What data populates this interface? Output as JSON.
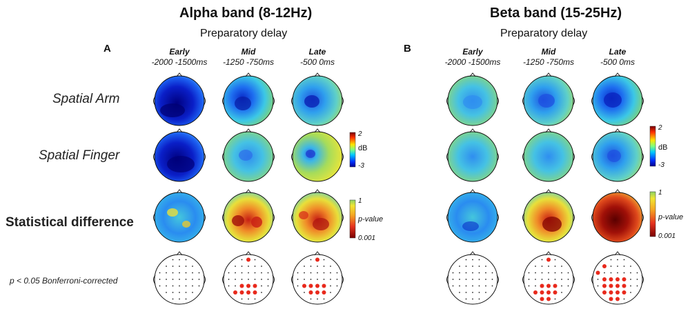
{
  "panels": [
    {
      "letter": "A",
      "band_title": "Alpha band (8-12Hz)",
      "subtitle": "Preparatory delay",
      "columns": [
        {
          "name": "Early",
          "range": "-2000 -1500ms"
        },
        {
          "name": "Mid",
          "range": "-1250 -750ms"
        },
        {
          "name": "Late",
          "range": "-500 0ms"
        }
      ],
      "power_colorbar": {
        "max": "2",
        "unit": "dB",
        "min": "-3"
      },
      "p_colorbar": {
        "max": "1",
        "label": "p-value",
        "min": "0.001"
      }
    },
    {
      "letter": "B",
      "band_title": "Beta band (15-25Hz)",
      "subtitle": "Preparatory delay",
      "columns": [
        {
          "name": "Early",
          "range": "-2000 -1500ms"
        },
        {
          "name": "Mid",
          "range": "-1250 -750ms"
        },
        {
          "name": "Late",
          "range": "-500 0ms"
        }
      ],
      "power_colorbar": {
        "max": "2",
        "unit": "dB",
        "min": "-3"
      },
      "p_colorbar": {
        "max": "1",
        "label": "p-value",
        "min": "0.001"
      }
    }
  ],
  "row_labels": {
    "spatial_arm": "Spatial Arm",
    "spatial_finger": "Spatial Finger",
    "stat_diff": "Statistical difference",
    "bonferroni": "p < 0.05 Bonferroni-corrected"
  },
  "colors": {
    "jet_dark_blue": "#00008f",
    "jet_blue": "#1e6ff0",
    "jet_cyan": "#3cc8e6",
    "jet_green": "#8cd264",
    "jet_yellow": "#f0e632",
    "jet_red": "#e6321e",
    "jet_dark_red": "#7a0000",
    "significant_dot": "#e8291c"
  }
}
